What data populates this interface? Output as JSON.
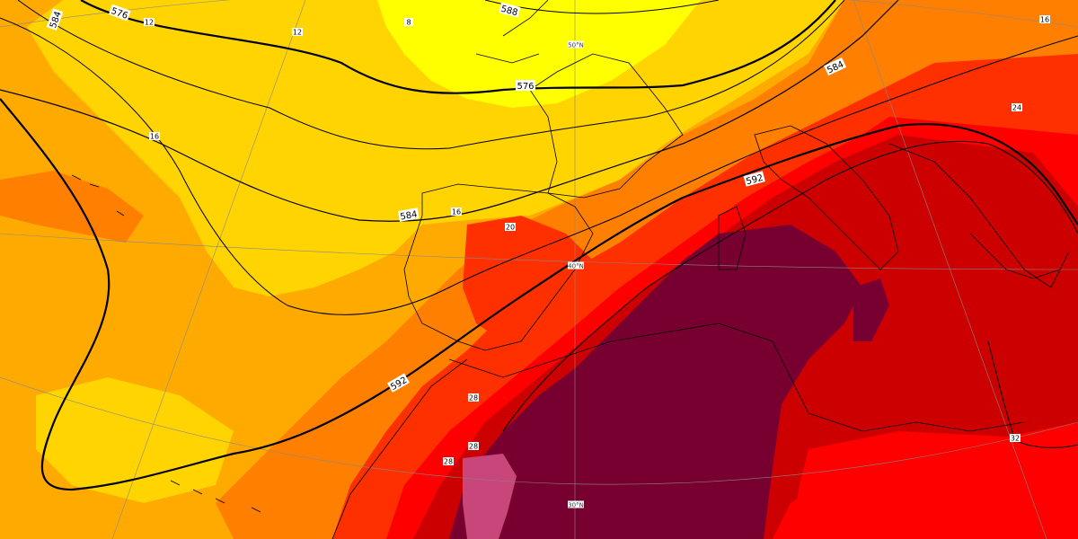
{
  "map": {
    "colors": {
      "t12": "#ffd400",
      "t8": "#ffff00",
      "t16": "#ffaa00",
      "t20": "#ff7f00",
      "t24": "#ff3000",
      "t28": "#ff0000",
      "t32": "#cc0000",
      "t36": "#780030",
      "t40": "#c8467a",
      "graticule": "#888888",
      "coast": "#000000",
      "contour": "#000000"
    },
    "contour_labels": {
      "c576_a": "576",
      "c576_b": "576",
      "c584_a": "584",
      "c584_b": "584",
      "c584_c": "584",
      "c588": "588",
      "c592_a": "592",
      "c592_b": "592"
    },
    "temp_labels": {
      "t12_a": "12",
      "t12_b": "12",
      "t8": "8",
      "t16_a": "16",
      "t16_b": "16",
      "t16_c": "16",
      "t20": "20",
      "t24": "24",
      "t28_a": "28",
      "t28_b": "28",
      "t28_c": "28",
      "t32": "32"
    },
    "lat_labels": {
      "lat50": "50°N",
      "lat40": "40°N",
      "lat30": "30°N"
    }
  }
}
